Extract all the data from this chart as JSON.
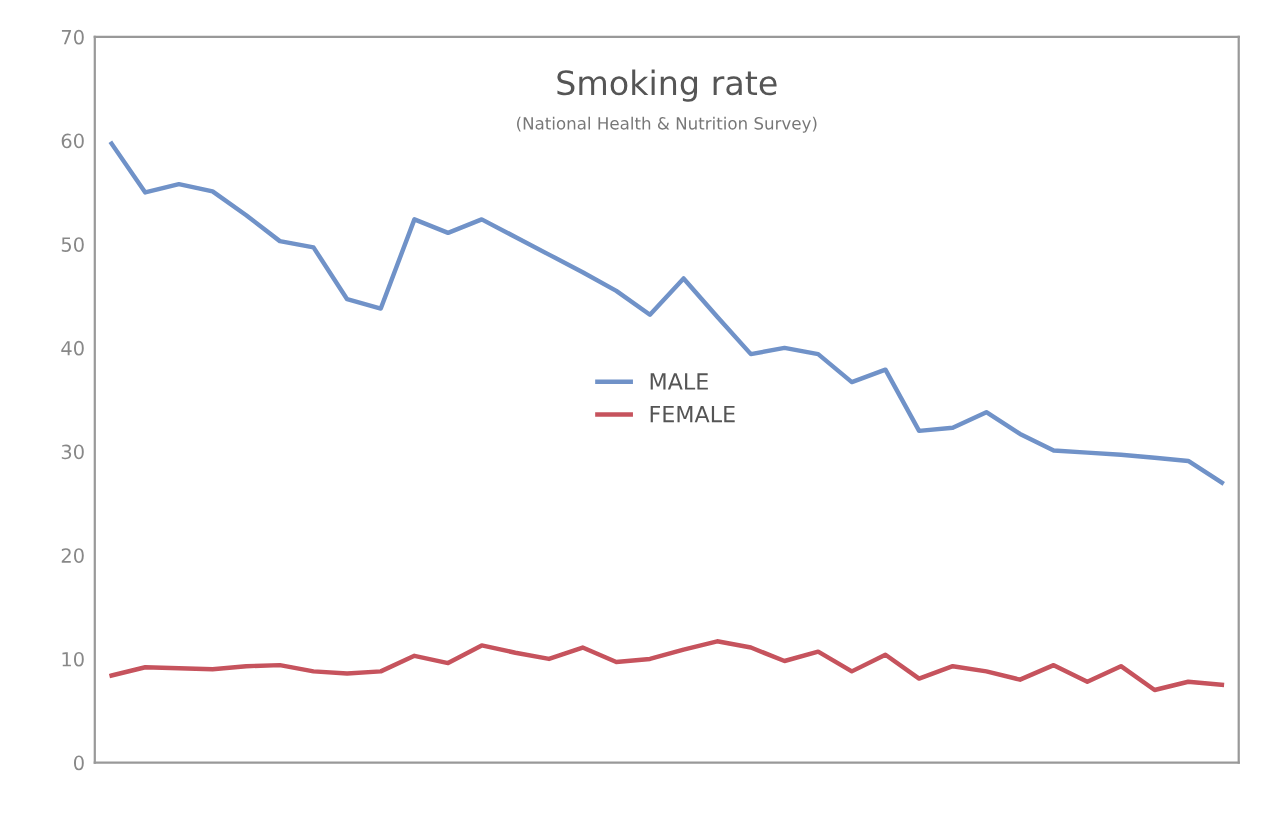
{
  "chart_data": {
    "type": "line",
    "title": "Smoking rate",
    "subtitle": "(National Health & Nutrition Survey)",
    "categories": [
      null,
      null,
      null,
      null,
      null,
      null,
      null,
      null,
      null,
      null,
      null,
      null,
      null,
      null,
      null,
      null,
      null,
      null,
      null,
      null,
      null,
      null,
      null,
      null,
      null,
      null,
      null,
      null,
      null,
      null,
      null,
      null,
      null,
      null
    ],
    "series": [
      {
        "name": "MALE",
        "color": "#7092c8",
        "values": [
          59.7,
          55.0,
          55.8,
          55.1,
          52.8,
          50.3,
          49.7,
          44.7,
          43.8,
          52.4,
          51.1,
          52.4,
          50.7,
          49.0,
          47.3,
          45.5,
          43.2,
          46.7,
          43.0,
          39.4,
          40.0,
          39.4,
          36.7,
          37.9,
          32.0,
          32.3,
          33.8,
          31.7,
          30.1,
          29.9,
          29.7,
          29.4,
          29.1,
          27.0
        ]
      },
      {
        "name": "FEMALE",
        "color": "#c6535d",
        "values": [
          8.4,
          9.2,
          9.1,
          9.0,
          9.3,
          9.4,
          8.8,
          8.6,
          8.8,
          10.3,
          9.6,
          11.3,
          10.6,
          10.0,
          11.1,
          9.7,
          10.0,
          10.9,
          11.7,
          11.1,
          9.8,
          10.7,
          8.8,
          10.4,
          8.1,
          9.3,
          8.8,
          8.0,
          9.4,
          7.8,
          9.3,
          7.0,
          7.8,
          7.5
        ]
      }
    ],
    "ylim": [
      0,
      70
    ],
    "yticks": [
      0,
      10,
      20,
      30,
      40,
      50,
      60,
      70
    ],
    "grid": false,
    "legend": "center",
    "marker": "none",
    "line_style": "solid"
  }
}
